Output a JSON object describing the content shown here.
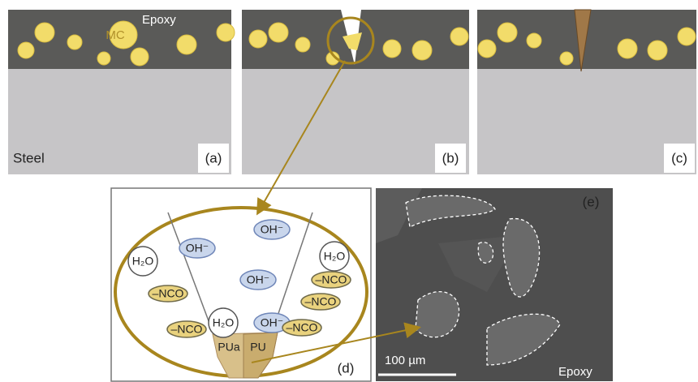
{
  "panel_a": {
    "epoxy": "Epoxy",
    "capsule": "MC",
    "steel": "Steel",
    "label": "(a)"
  },
  "panel_b": {
    "label": "(b)"
  },
  "panel_c": {
    "label": "(c)"
  },
  "panel_d": {
    "label": "(d)",
    "species": [
      "OH⁻",
      "OH⁻",
      "H₂O",
      "H₂O",
      "OH⁻",
      "–NCO",
      "–NCO",
      "–NCO",
      "–NCO",
      "H₂O",
      "OH⁻",
      "–NCO"
    ],
    "products": [
      "PUa",
      "PU"
    ]
  },
  "panel_e": {
    "label": "(e)",
    "scale_bar": "100 µm",
    "material": "Epoxy"
  }
}
